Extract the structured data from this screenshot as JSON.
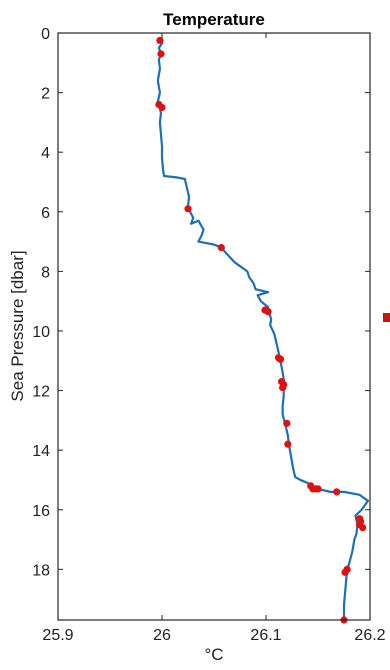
{
  "chart_data": {
    "type": "line",
    "title": "Temperature",
    "xlabel": "°C",
    "ylabel": "Sea Pressure [dbar]",
    "xlim": [
      25.9,
      26.2
    ],
    "ylim": [
      0,
      19.7
    ],
    "y_reversed": true,
    "x_ticks": [
      25.9,
      26.0,
      26.1,
      26.2
    ],
    "x_tick_labels": [
      "25.9",
      "26",
      "26.1",
      "26.2"
    ],
    "y_ticks": [
      0,
      2,
      4,
      6,
      8,
      10,
      12,
      14,
      16,
      18
    ],
    "y_tick_labels": [
      "0",
      "2",
      "4",
      "6",
      "8",
      "10",
      "12",
      "14",
      "16",
      "18"
    ],
    "grid": false,
    "series": [
      {
        "kind": "profile-line",
        "color": "#1f6fb4",
        "points": [
          [
            25.998,
            0.2
          ],
          [
            26.0,
            0.35
          ],
          [
            25.997,
            0.5
          ],
          [
            25.999,
            0.7
          ],
          [
            25.997,
            0.9
          ],
          [
            25.998,
            1.2
          ],
          [
            25.996,
            1.6
          ],
          [
            25.998,
            2.0
          ],
          [
            25.996,
            2.3
          ],
          [
            25.998,
            2.5
          ],
          [
            25.999,
            2.7
          ],
          [
            25.998,
            3.0
          ],
          [
            25.999,
            3.4
          ],
          [
            26.0,
            3.8
          ],
          [
            26.0,
            4.2
          ],
          [
            26.001,
            4.6
          ],
          [
            26.002,
            4.8
          ],
          [
            26.015,
            4.85
          ],
          [
            26.022,
            4.9
          ],
          [
            26.024,
            5.2
          ],
          [
            26.026,
            5.5
          ],
          [
            26.025,
            5.8
          ],
          [
            26.027,
            6.0
          ],
          [
            26.03,
            6.2
          ],
          [
            26.028,
            6.4
          ],
          [
            26.035,
            6.3
          ],
          [
            26.04,
            6.6
          ],
          [
            26.038,
            6.8
          ],
          [
            26.035,
            7.0
          ],
          [
            26.05,
            7.1
          ],
          [
            26.057,
            7.2
          ],
          [
            26.062,
            7.4
          ],
          [
            26.07,
            7.7
          ],
          [
            26.082,
            8.0
          ],
          [
            26.084,
            8.2
          ],
          [
            26.088,
            8.4
          ],
          [
            26.09,
            8.6
          ],
          [
            26.102,
            8.7
          ],
          [
            26.092,
            8.8
          ],
          [
            26.095,
            9.0
          ],
          [
            26.102,
            9.2
          ],
          [
            26.103,
            9.4
          ],
          [
            26.105,
            9.6
          ],
          [
            26.104,
            9.8
          ],
          [
            26.108,
            10.1
          ],
          [
            26.11,
            10.4
          ],
          [
            26.112,
            10.7
          ],
          [
            26.113,
            10.9
          ],
          [
            26.115,
            11.2
          ],
          [
            26.117,
            11.6
          ],
          [
            26.117,
            11.9
          ],
          [
            26.117,
            12.2
          ],
          [
            26.116,
            12.5
          ],
          [
            26.116,
            12.8
          ],
          [
            26.119,
            13.2
          ],
          [
            26.121,
            13.5
          ],
          [
            26.122,
            13.8
          ],
          [
            26.124,
            14.2
          ],
          [
            26.126,
            14.6
          ],
          [
            26.128,
            14.9
          ],
          [
            26.133,
            15.0
          ],
          [
            26.14,
            15.1
          ],
          [
            26.145,
            15.2
          ],
          [
            26.15,
            15.3
          ],
          [
            26.162,
            15.4
          ],
          [
            26.175,
            15.4
          ],
          [
            26.19,
            15.5
          ],
          [
            26.198,
            15.7
          ],
          [
            26.192,
            16.0
          ],
          [
            26.186,
            16.2
          ],
          [
            26.188,
            16.5
          ],
          [
            26.187,
            16.8
          ],
          [
            26.185,
            17.0
          ],
          [
            26.183,
            17.4
          ],
          [
            26.18,
            17.8
          ],
          [
            26.178,
            18.0
          ],
          [
            26.177,
            18.4
          ],
          [
            26.176,
            18.8
          ],
          [
            26.175,
            19.2
          ],
          [
            26.175,
            19.7
          ]
        ]
      },
      {
        "kind": "flagged-points",
        "color": "#e01010",
        "points": [
          [
            25.998,
            0.25
          ],
          [
            25.999,
            0.7
          ],
          [
            25.997,
            2.4
          ],
          [
            26.0,
            2.5
          ],
          [
            26.025,
            5.9
          ],
          [
            26.057,
            7.2
          ],
          [
            26.099,
            9.3
          ],
          [
            26.102,
            9.35
          ],
          [
            26.112,
            10.9
          ],
          [
            26.114,
            10.95
          ],
          [
            26.115,
            11.7
          ],
          [
            26.116,
            11.9
          ],
          [
            26.117,
            11.8
          ],
          [
            26.12,
            13.1
          ],
          [
            26.121,
            13.8
          ],
          [
            26.143,
            15.2
          ],
          [
            26.145,
            15.3
          ],
          [
            26.148,
            15.3
          ],
          [
            26.15,
            15.3
          ],
          [
            26.168,
            15.4
          ],
          [
            26.19,
            16.3
          ],
          [
            26.191,
            16.4
          ],
          [
            26.19,
            16.5
          ],
          [
            26.193,
            16.6
          ],
          [
            26.178,
            18.0
          ],
          [
            26.176,
            18.1
          ],
          [
            26.175,
            19.7
          ]
        ]
      }
    ]
  }
}
